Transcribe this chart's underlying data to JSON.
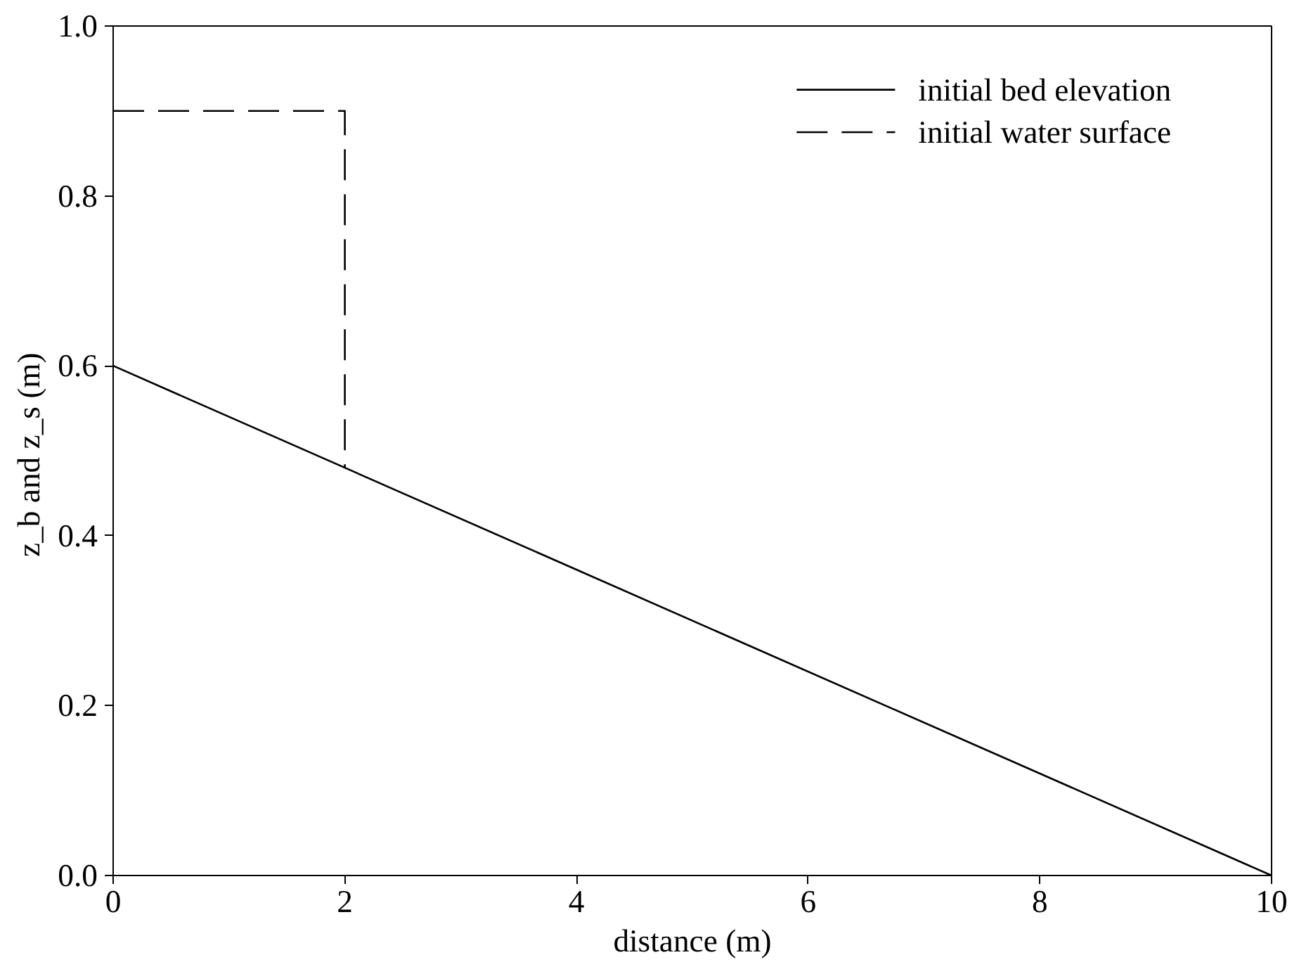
{
  "chart_data": {
    "type": "line",
    "xlabel": "distance (m)",
    "ylabel": "z_b  and z_s (m)",
    "xlim": [
      0,
      10
    ],
    "ylim": [
      0,
      1
    ],
    "xticks": [
      0,
      2,
      4,
      6,
      8,
      10
    ],
    "yticks": [
      {
        "value": 0,
        "label": "0.0"
      },
      0.2,
      0.4,
      0.6,
      0.8,
      {
        "value": 1,
        "label": "1.0"
      }
    ],
    "grid": false,
    "legend": "top right",
    "marker": "none",
    "series": [
      {
        "name": "initial bed elevation",
        "color": "#000000",
        "x": [
          0,
          10
        ],
        "values": [
          0.6,
          0
        ],
        "line_style": "solid"
      },
      {
        "name": "initial water surface",
        "color": "#000000",
        "x": [
          0,
          2,
          2
        ],
        "values": [
          0.9,
          0.9,
          0.48
        ],
        "line_style": "dashed"
      }
    ]
  }
}
